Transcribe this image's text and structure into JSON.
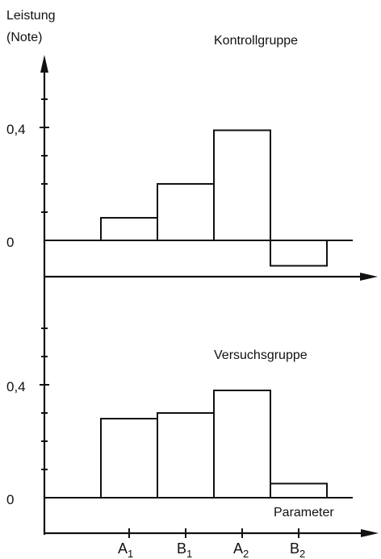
{
  "chart_data": [
    {
      "type": "bar",
      "title": "Kontrollgruppe",
      "ylabel_line1": "Leistung",
      "ylabel_line2": "(Note)",
      "xlabel": "",
      "categories": [
        "A1",
        "B1",
        "A2",
        "B2"
      ],
      "values": [
        0.08,
        0.2,
        0.39,
        -0.09
      ],
      "ylim": [
        -0.12,
        0.65
      ],
      "yticks": [
        0,
        0.4
      ],
      "ytick_labels": [
        "0",
        "0,4"
      ],
      "grid": false,
      "bar_color": "#ffffff",
      "line_color": "#111111"
    },
    {
      "type": "bar",
      "title": "Versuchsgruppe",
      "xlabel": "Parameter",
      "categories": [
        "A1",
        "B1",
        "A2",
        "B2"
      ],
      "category_labels": [
        {
          "main": "A",
          "sub": "1"
        },
        {
          "main": "B",
          "sub": "1"
        },
        {
          "main": "A",
          "sub": "2"
        },
        {
          "main": "B",
          "sub": "2"
        }
      ],
      "values": [
        0.28,
        0.3,
        0.38,
        0.05
      ],
      "ylim": [
        -0.05,
        0.65
      ],
      "yticks": [
        0,
        0.4
      ],
      "ytick_labels": [
        "0",
        "0,4"
      ],
      "grid": false,
      "bar_color": "#ffffff",
      "line_color": "#111111"
    }
  ]
}
